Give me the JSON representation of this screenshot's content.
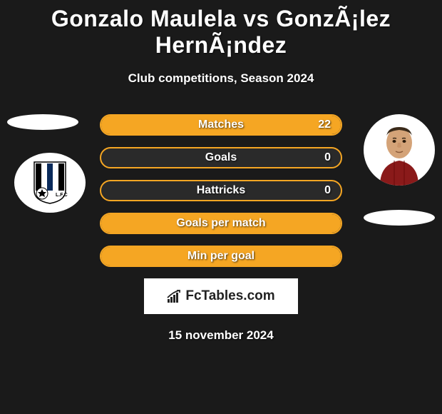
{
  "header": {
    "title": "Gonzalo Maulela vs GonzÃ¡lez HernÃ¡ndez",
    "subtitle": "Club competitions, Season 2024"
  },
  "left_side": {
    "placeholder1_bg": "#ffffff",
    "club_badge": {
      "bg": "#ffffff",
      "shield_stripes": [
        "#000000",
        "#ffffff",
        "#0a2a5a",
        "#ffffff",
        "#000000"
      ],
      "has_ball": true
    }
  },
  "right_side": {
    "player_bg": "#ffffff",
    "placeholder1_bg": "#ffffff"
  },
  "stats": [
    {
      "label": "Matches",
      "value_right": "22",
      "left_fill_color": "#f5a623",
      "left_fill_pct": 0,
      "right_fill_color": "#f5a623",
      "right_fill_pct": 100,
      "border_color": "#f5a623",
      "bg_color": "#2a2a2a"
    },
    {
      "label": "Goals",
      "value_right": "0",
      "left_fill_color": "#f5a623",
      "left_fill_pct": 0,
      "right_fill_color": "#f5a623",
      "right_fill_pct": 0,
      "border_color": "#f5a623",
      "bg_color": "#2a2a2a"
    },
    {
      "label": "Hattricks",
      "value_right": "0",
      "left_fill_color": "#f5a623",
      "left_fill_pct": 0,
      "right_fill_color": "#f5a623",
      "right_fill_pct": 0,
      "border_color": "#f5a623",
      "bg_color": "#2a2a2a"
    },
    {
      "label": "Goals per match",
      "value_right": "",
      "left_fill_color": "#f5a623",
      "left_fill_pct": 0,
      "right_fill_color": "#f5a623",
      "right_fill_pct": 100,
      "border_color": "#f5a623",
      "bg_color": "#2a2a2a"
    },
    {
      "label": "Min per goal",
      "value_right": "",
      "left_fill_color": "#f5a623",
      "left_fill_pct": 0,
      "right_fill_color": "#f5a623",
      "right_fill_pct": 100,
      "border_color": "#f5a623",
      "bg_color": "#2a2a2a"
    }
  ],
  "logo": {
    "text": "FcTables.com",
    "icon_name": "signal-icon",
    "bg": "#ffffff",
    "text_color": "#222222"
  },
  "footer": {
    "date": "15 november 2024"
  },
  "colors": {
    "page_bg": "#1a1a1a",
    "text": "#ffffff",
    "accent": "#f5a623"
  }
}
